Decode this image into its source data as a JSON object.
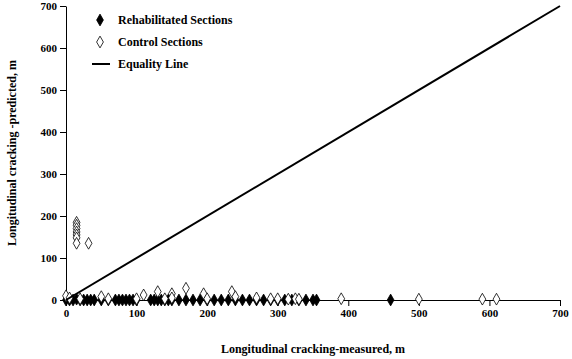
{
  "chart_data": {
    "type": "scatter",
    "x_label": "Longitudinal cracking-measured, m",
    "y_label": "Longitudinal cracking -predicted, m",
    "xlim": [
      0,
      700
    ],
    "ylim": [
      0,
      700
    ],
    "xticks": [
      0,
      100,
      200,
      300,
      400,
      500,
      600,
      700
    ],
    "yticks": [
      0,
      100,
      200,
      300,
      400,
      500,
      600,
      700
    ],
    "grid": false,
    "legend": "top-left",
    "series": [
      {
        "name": "Rehabilitated Sections",
        "color": "#000000",
        "marker": "diamond",
        "x": [
          0,
          5,
          10,
          15,
          20,
          25,
          30,
          35,
          40,
          50,
          60,
          70,
          75,
          80,
          85,
          90,
          95,
          100,
          120,
          125,
          130,
          135,
          140,
          145,
          150,
          160,
          170,
          180,
          190,
          200,
          210,
          220,
          230,
          240,
          250,
          260,
          270,
          280,
          290,
          300,
          310,
          320,
          330,
          340,
          350,
          355,
          460
        ],
        "values": [
          0,
          0,
          0,
          2,
          0,
          0,
          0,
          0,
          0,
          0,
          0,
          0,
          0,
          0,
          0,
          0,
          0,
          0,
          0,
          0,
          0,
          0,
          0,
          0,
          0,
          0,
          0,
          0,
          0,
          0,
          0,
          0,
          0,
          0,
          0,
          0,
          0,
          0,
          0,
          0,
          0,
          0,
          0,
          0,
          0,
          0,
          0
        ]
      },
      {
        "name": "Control Sections",
        "color": "#000000",
        "marker": "diamond-open",
        "x": [
          15,
          15,
          15,
          15,
          15,
          15,
          15,
          32,
          0,
          5,
          20,
          50,
          60,
          100,
          110,
          130,
          140,
          150,
          150,
          170,
          195,
          200,
          235,
          240,
          270,
          290,
          300,
          315,
          325,
          330,
          390,
          500,
          590,
          610
        ],
        "values": [
          185,
          178,
          170,
          162,
          155,
          148,
          135,
          135,
          10,
          5,
          3,
          8,
          3,
          3,
          12,
          20,
          3,
          15,
          5,
          28,
          15,
          3,
          20,
          8,
          5,
          3,
          3,
          2,
          3,
          2,
          3,
          2,
          2,
          2
        ]
      },
      {
        "name": "Equality Line",
        "color": "#000000",
        "type": "line",
        "line_style": "solid",
        "x": [
          0,
          700
        ],
        "values": [
          0,
          700
        ]
      }
    ]
  }
}
